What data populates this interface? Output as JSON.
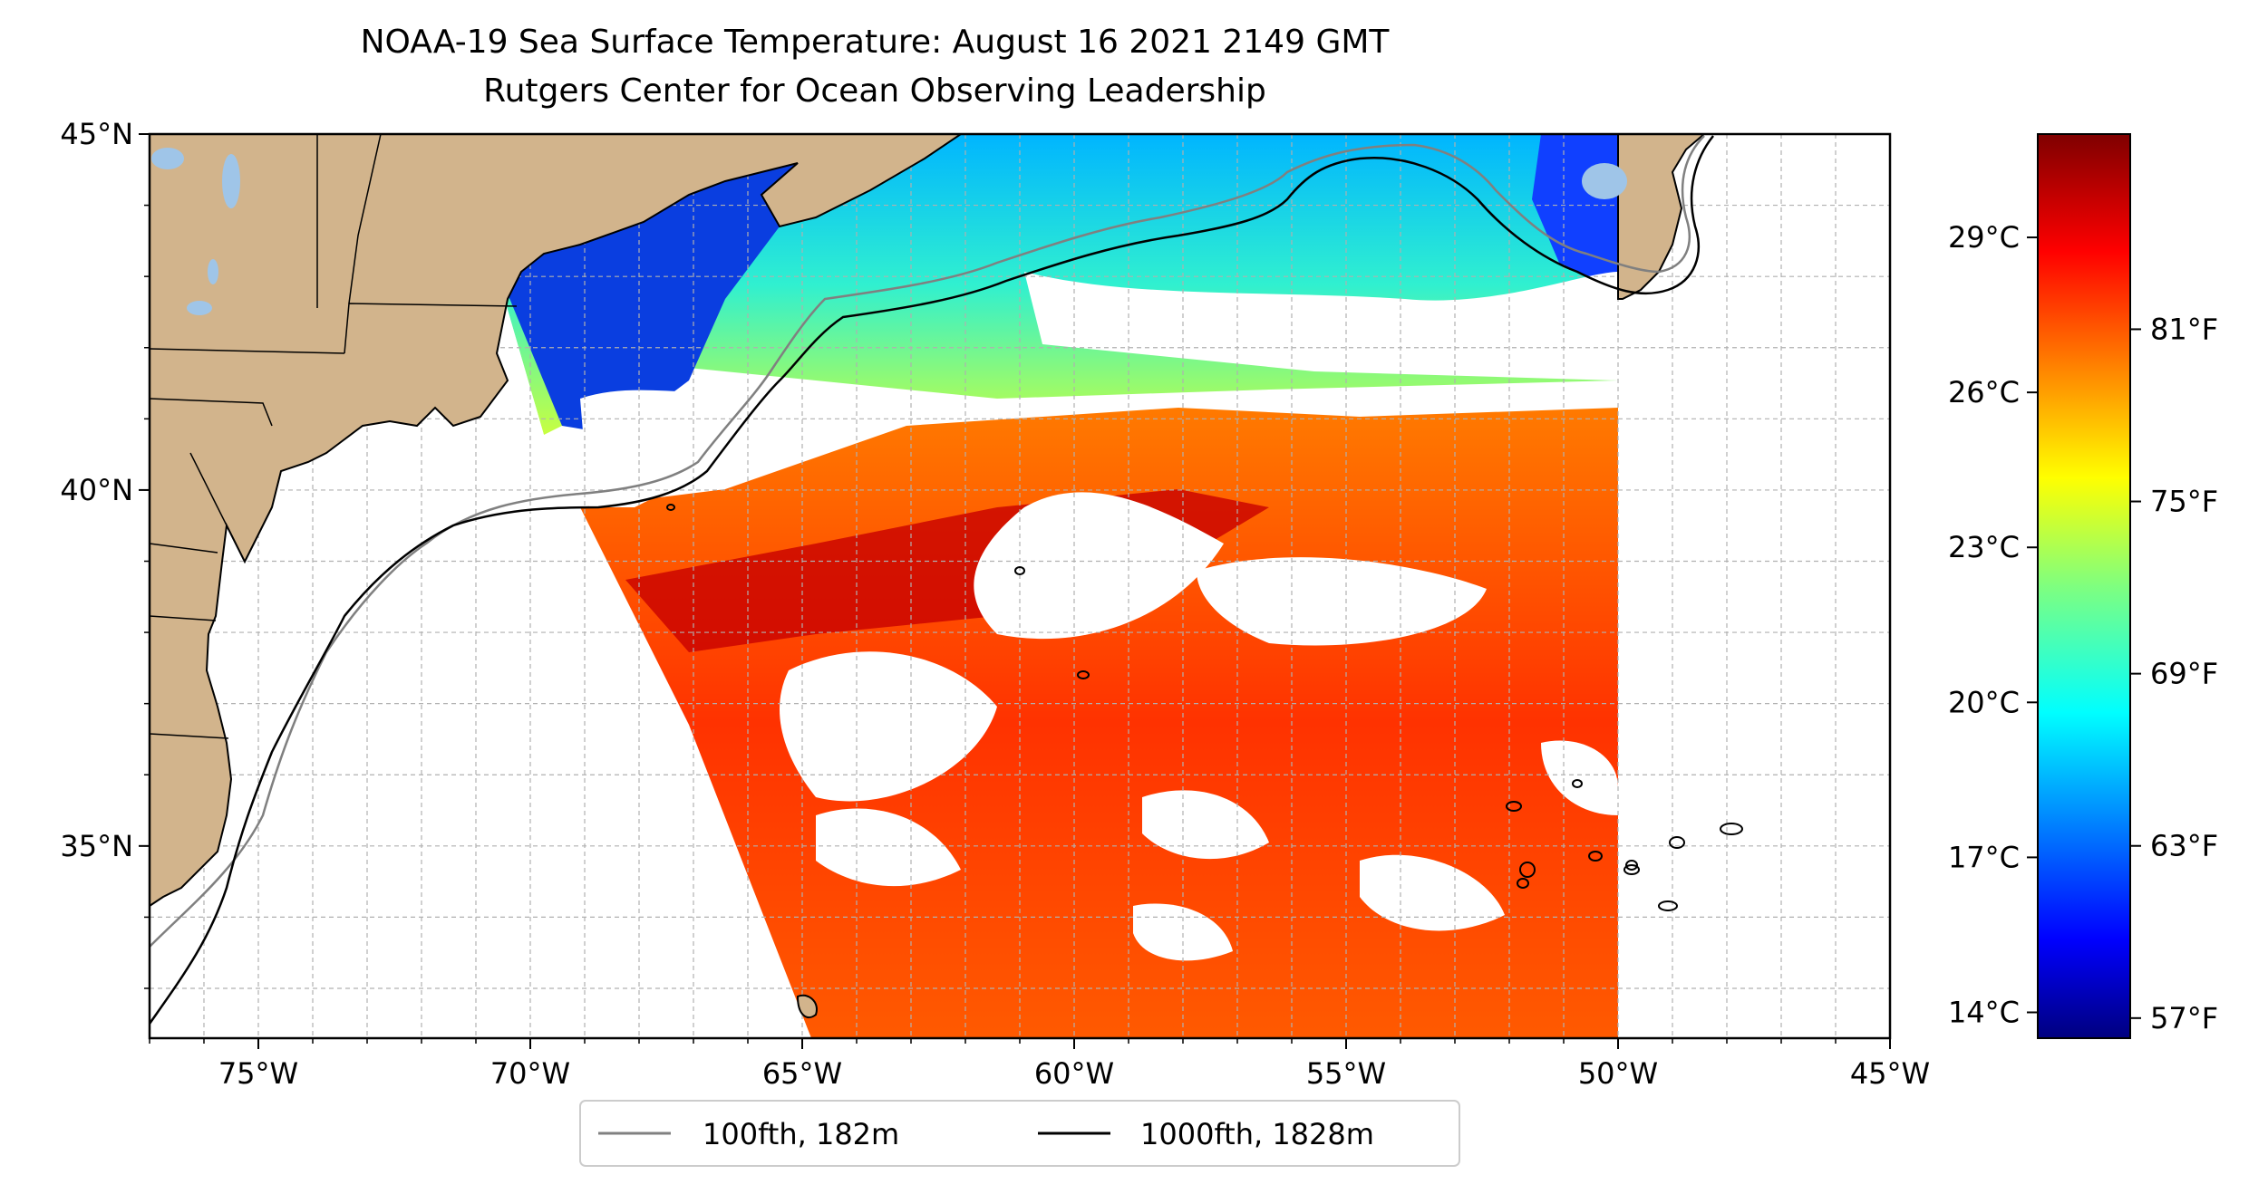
{
  "title": {
    "line1": "NOAA-19 Sea Surface Temperature: August 16 2021 2149 GMT",
    "line2": "Rutgers Center for Ocean Observing Leadership"
  },
  "map": {
    "lon_range": [
      -77,
      -45
    ],
    "lat_range": [
      32.3,
      45
    ],
    "lat_ticks": [
      {
        "value": 45,
        "label": "45°N"
      },
      {
        "value": 40,
        "label": "40°N"
      },
      {
        "value": 35,
        "label": "35°N"
      }
    ],
    "lon_ticks": [
      {
        "value": -75,
        "label": "75°W"
      },
      {
        "value": -70,
        "label": "70°W"
      },
      {
        "value": -65,
        "label": "65°W"
      },
      {
        "value": -60,
        "label": "60°W"
      },
      {
        "value": -55,
        "label": "55°W"
      },
      {
        "value": -50,
        "label": "50°W"
      },
      {
        "value": -45,
        "label": "45°W"
      }
    ],
    "grid": true,
    "land_color": "#d2b48c",
    "lake_color": "#9fc5e8"
  },
  "legend": {
    "placement": "bottom-center",
    "items": [
      {
        "label": "100fth, 182m",
        "color": "#808080"
      },
      {
        "label": "1000fth, 1828m",
        "color": "#000000"
      }
    ]
  },
  "colorbar": {
    "colormap": "jet",
    "celsius_ticks": [
      {
        "value": 29,
        "label": "29°C"
      },
      {
        "value": 26,
        "label": "26°C"
      },
      {
        "value": 23,
        "label": "23°C"
      },
      {
        "value": 20,
        "label": "20°C"
      },
      {
        "value": 17,
        "label": "17°C"
      },
      {
        "value": 14,
        "label": "14°C"
      }
    ],
    "fahrenheit_ticks": [
      {
        "value": 81,
        "label": "81°F"
      },
      {
        "value": 75,
        "label": "75°F"
      },
      {
        "value": 69,
        "label": "69°F"
      },
      {
        "value": 63,
        "label": "63°F"
      },
      {
        "value": 57,
        "label": "57°F"
      }
    ]
  }
}
